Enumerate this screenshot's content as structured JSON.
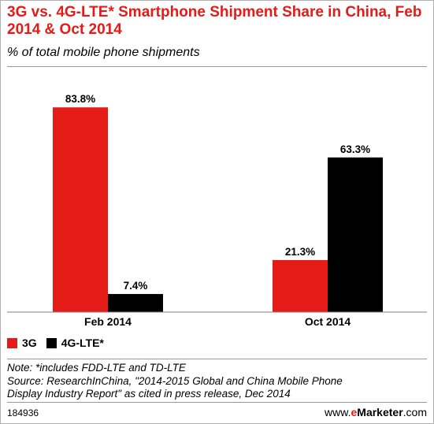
{
  "chart_data": {
    "type": "bar",
    "title": "3G vs. 4G-LTE* Smartphone Shipment Share in China, Feb 2014 & Oct 2014",
    "subtitle": "% of total mobile phone shipments",
    "categories": [
      "Feb 2014",
      "Oct 2014"
    ],
    "series": [
      {
        "name": "3G",
        "values": [
          83.8,
          21.3
        ],
        "color": "#e41b17"
      },
      {
        "name": "4G-LTE*",
        "values": [
          7.4,
          63.3
        ],
        "color": "#000000"
      }
    ],
    "value_labels": [
      [
        "83.8%",
        "21.3%"
      ],
      [
        "7.4%",
        "63.3%"
      ]
    ],
    "ylim": [
      0,
      90
    ],
    "grid": false,
    "legend_position": "bottom-left"
  },
  "notes": {
    "note": "Note: *includes FDD-LTE and TD-LTE",
    "source_line1": "Source: ResearchInChina, \"2014-2015 Global and China Mobile Phone",
    "source_line2": "Display Industry Report\" as cited in press release, Dec 2014"
  },
  "footer": {
    "chart_id": "184936",
    "brand_prefix": "www.",
    "brand_e": "e",
    "brand_marketer": "Marketer",
    "brand_suffix": ".com"
  }
}
